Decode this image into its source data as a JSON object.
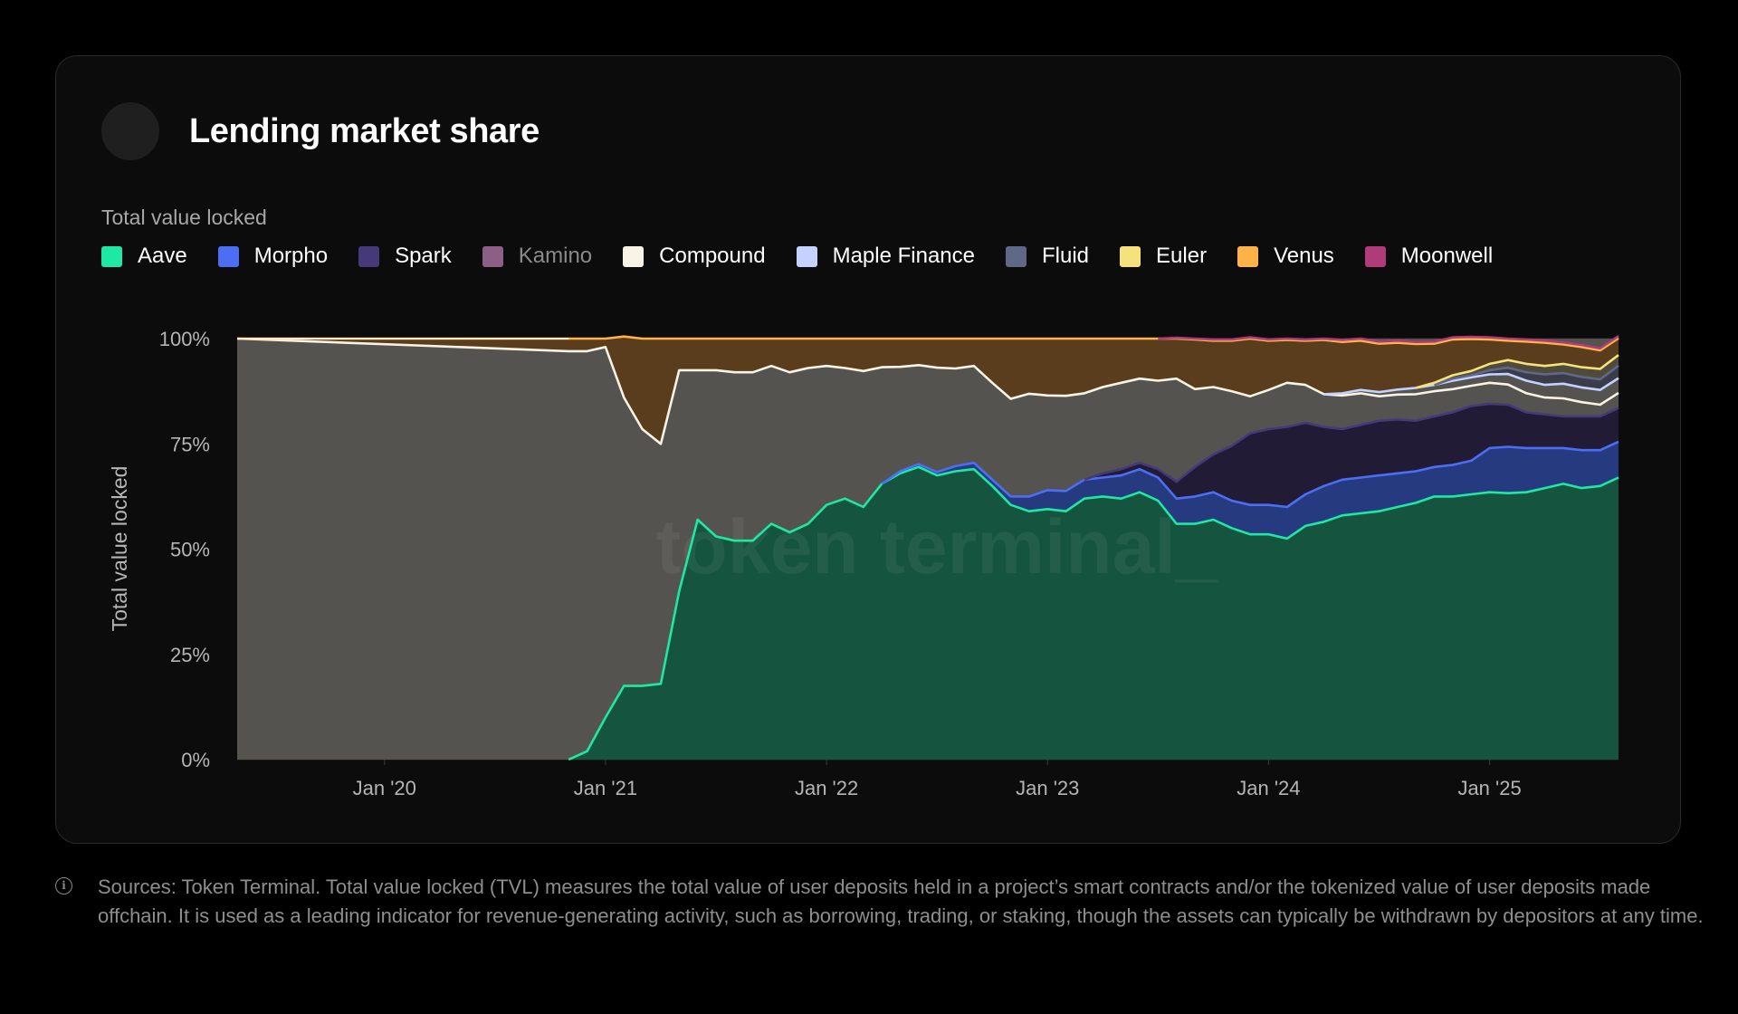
{
  "card": {
    "title": "Lending market share",
    "subtitle": "Total value locked"
  },
  "legend": [
    {
      "label": "Aave",
      "color": "#1de9a4",
      "dim": false
    },
    {
      "label": "Morpho",
      "color": "#4c6ef5",
      "dim": false
    },
    {
      "label": "Spark",
      "color": "#46397a",
      "dim": false
    },
    {
      "label": "Kamino",
      "color": "#8d5e86",
      "dim": true
    },
    {
      "label": "Compound",
      "color": "#f8f3e4",
      "dim": false
    },
    {
      "label": "Maple Finance",
      "color": "#c5d1ff",
      "dim": false
    },
    {
      "label": "Fluid",
      "color": "#5f6886",
      "dim": false
    },
    {
      "label": "Euler",
      "color": "#f5e27a",
      "dim": false
    },
    {
      "label": "Venus",
      "color": "#ffb347",
      "dim": false
    },
    {
      "label": "Moonwell",
      "color": "#b03a7a",
      "dim": false
    }
  ],
  "watermark": "token terminal_",
  "footnote": "Sources: Token Terminal. Total value locked (TVL) measures the total value of user deposits held in a project’s smart contracts and/or the tokenized value of user deposits made offchain. It is used as a leading indicator for revenue-generating activity, such as borrowing, trading, or staking, though the assets can typically be withdrawn by depositors at any time.",
  "chart_data": {
    "type": "area",
    "stacked": true,
    "normalized": true,
    "title": "Lending market share",
    "subtitle": "Total value locked",
    "ylabel": "Total value locked",
    "ylim": [
      0,
      100
    ],
    "y_ticks": [
      "0%",
      "25%",
      "50%",
      "75%",
      "100%"
    ],
    "x_ticks": [
      "Jan '20",
      "Jan '21",
      "Jan '22",
      "Jan '23",
      "Jan '24",
      "Jan '25"
    ],
    "x_start": "2019-05",
    "x_end": "2025-08",
    "grid": true,
    "legend_position": "top-left",
    "other_color": "#555350",
    "venus_fill": "#5a3d1c",
    "x": [
      "2019-05",
      "2020-11",
      "2020-12",
      "2021-01",
      "2021-02",
      "2021-03",
      "2021-04",
      "2021-05",
      "2021-06",
      "2021-07",
      "2021-08",
      "2021-09",
      "2021-10",
      "2021-11",
      "2021-12",
      "2022-01",
      "2022-02",
      "2022-03",
      "2022-04",
      "2022-05",
      "2022-06",
      "2022-07",
      "2022-08",
      "2022-09",
      "2022-10",
      "2022-11",
      "2022-12",
      "2023-01",
      "2023-02",
      "2023-03",
      "2023-04",
      "2023-05",
      "2023-06",
      "2023-07",
      "2023-08",
      "2023-09",
      "2023-10",
      "2023-11",
      "2023-12",
      "2024-01",
      "2024-02",
      "2024-03",
      "2024-04",
      "2024-05",
      "2024-06",
      "2024-07",
      "2024-08",
      "2024-09",
      "2024-10",
      "2024-11",
      "2024-12",
      "2025-01",
      "2025-02",
      "2025-03",
      "2025-04",
      "2025-05",
      "2025-06",
      "2025-07",
      "2025-08"
    ],
    "series": [
      {
        "name": "Aave",
        "values": [
          0,
          0,
          2,
          10,
          17.5,
          17.5,
          18,
          40,
          57,
          53,
          52,
          52,
          56,
          54,
          56,
          60.5,
          62,
          60,
          65.5,
          68,
          69.5,
          67.5,
          68.5,
          69,
          65,
          60.5,
          59,
          59.5,
          59,
          62,
          62.5,
          62,
          63.5,
          61.5,
          56,
          56,
          57,
          55,
          53.5,
          53.5,
          52.5,
          55.5,
          56.5,
          58,
          58.5,
          59,
          60,
          61,
          62.5,
          62.5,
          63,
          63.5,
          63.3,
          63.5,
          64.5,
          65.5,
          64.5,
          65,
          67
        ]
      },
      {
        "name": "Morpho",
        "values": [
          0,
          0,
          0,
          0,
          0,
          0,
          0,
          0,
          0,
          0,
          0,
          0,
          0,
          0,
          0,
          0,
          0,
          0,
          0,
          0.5,
          0.7,
          0.8,
          1.2,
          1.5,
          1.5,
          2,
          3.5,
          4.5,
          4.8,
          4.5,
          4.5,
          5.5,
          5.5,
          5.5,
          6,
          6.5,
          6.5,
          6.5,
          7,
          7,
          7.5,
          7.5,
          8.5,
          8.5,
          8.5,
          8.5,
          8,
          7.5,
          7,
          7.5,
          8,
          10.5,
          11,
          10.5,
          9.5,
          8.5,
          9,
          8.5,
          8.5
        ]
      },
      {
        "name": "Spark",
        "values": [
          0,
          0,
          0,
          0,
          0,
          0,
          0,
          0,
          0,
          0,
          0,
          0,
          0,
          0,
          0,
          0,
          0,
          0,
          0,
          0,
          0,
          0,
          0,
          0,
          0,
          0,
          0,
          0,
          0,
          0,
          1,
          1.5,
          1.5,
          2,
          4,
          7,
          9,
          13,
          17,
          18,
          19,
          17,
          14,
          12,
          12.5,
          13,
          12.8,
          12,
          12,
          12.5,
          13,
          10.5,
          10,
          8.5,
          8,
          7.5,
          8,
          8,
          8
        ]
      },
      {
        "name": "Kamino",
        "values": [
          0,
          0,
          0,
          0,
          0,
          0,
          0,
          0,
          0,
          0,
          0,
          0,
          0,
          0,
          0,
          0,
          0,
          0,
          0,
          0,
          0,
          0,
          0,
          0,
          0,
          0,
          0,
          0,
          0,
          0,
          0,
          0,
          0,
          0,
          0,
          0,
          0,
          0,
          0,
          0,
          0,
          0,
          0,
          0,
          0,
          0,
          0,
          0,
          0,
          0,
          0,
          0,
          0,
          0,
          0,
          0,
          0,
          0,
          0
        ]
      },
      {
        "name": "Compound",
        "values": [
          100,
          97,
          95,
          88,
          68.5,
          61,
          57,
          52.5,
          35.5,
          39.5,
          40,
          40,
          37.5,
          38,
          37,
          33,
          31,
          32.3,
          27.7,
          24.8,
          23.5,
          24.8,
          23.2,
          23,
          23,
          23.2,
          24.4,
          22.5,
          22.6,
          20.5,
          20.5,
          20.5,
          20,
          21,
          24.5,
          18.5,
          16,
          13,
          8.8,
          9.3,
          10.5,
          9,
          7.8,
          8,
          7.5,
          5.8,
          5.9,
          6.3,
          6,
          5.5,
          4.8,
          5,
          4.8,
          4.5,
          4,
          4.3,
          3.4,
          2.8,
          3.6
        ]
      },
      {
        "name": "Maple Finance",
        "values": [
          0,
          0,
          0,
          0,
          0,
          0,
          0,
          0,
          0,
          0,
          0,
          0,
          0,
          0,
          0,
          0,
          0,
          0,
          0,
          0,
          0,
          0,
          0,
          0,
          0,
          0,
          0,
          0,
          0,
          0,
          0,
          0,
          0,
          0,
          0,
          0,
          0,
          0,
          0,
          0,
          0,
          0,
          0,
          0.5,
          0.8,
          1,
          1.2,
          1.5,
          1.5,
          2,
          2,
          2,
          2.5,
          3,
          3,
          3.5,
          3.5,
          3.5,
          3.5
        ]
      },
      {
        "name": "Fluid",
        "values": [
          0,
          0,
          0,
          0,
          0,
          0,
          0,
          0,
          0,
          0,
          0,
          0,
          0,
          0,
          0,
          0,
          0,
          0,
          0,
          0,
          0,
          0,
          0,
          0,
          0,
          0,
          0,
          0,
          0,
          0,
          0,
          0,
          0,
          0,
          0,
          0,
          0,
          0,
          0,
          0,
          0,
          0,
          0,
          0,
          0,
          0,
          0,
          0,
          0,
          0.5,
          0.5,
          1,
          1.5,
          2,
          2.5,
          2.5,
          2.5,
          2.5,
          3
        ]
      },
      {
        "name": "Euler",
        "values": [
          0,
          0,
          0,
          0,
          0,
          0,
          0,
          0,
          0,
          0,
          0,
          0,
          0,
          0,
          0,
          0,
          0,
          0,
          0,
          0,
          0,
          0,
          0,
          0,
          0,
          0,
          0,
          0,
          0,
          0,
          0,
          0,
          0,
          0,
          0,
          0,
          0,
          0,
          0,
          0,
          0,
          0,
          0,
          0,
          0,
          0,
          0,
          0,
          0.5,
          0.8,
          1,
          1.5,
          1.8,
          2,
          2,
          2.2,
          2.3,
          2.5,
          2.5
        ]
      },
      {
        "name": "Venus",
        "values": [
          0,
          3,
          3,
          2,
          14.5,
          21.5,
          25,
          7.5,
          7.5,
          7.5,
          8,
          8,
          6.5,
          8,
          7,
          6.5,
          7,
          7.7,
          6.8,
          6.7,
          6.3,
          6.9,
          7.1,
          6.5,
          10.5,
          14.3,
          13.1,
          13.5,
          13.6,
          13,
          11.5,
          10.5,
          9.5,
          10,
          9.5,
          11.8,
          11,
          12,
          13.7,
          11.7,
          10.2,
          10.5,
          12.9,
          12.2,
          11.7,
          11.5,
          11.1,
          10.4,
          9.3,
          8.5,
          7.6,
          5.8,
          4.6,
          5.3,
          5.5,
          4.6,
          4.8,
          4.4,
          4
        ]
      },
      {
        "name": "Moonwell",
        "values": [
          0,
          0,
          0,
          0,
          0,
          0,
          0,
          0,
          0,
          0,
          0,
          0,
          0,
          0,
          0,
          0,
          0,
          0,
          0,
          0,
          0,
          0,
          0,
          0,
          0,
          0,
          0,
          0,
          0,
          0,
          0,
          0,
          0,
          0,
          0.2,
          0.2,
          0.3,
          0.3,
          0.3,
          0.3,
          0.3,
          0.3,
          0.3,
          0.5,
          0.5,
          0.5,
          0.5,
          0.5,
          0.5,
          0.5,
          0.5,
          0.5,
          0.5,
          0.5,
          0.5,
          0.5,
          0.5,
          0.5,
          0.5
        ]
      }
    ]
  }
}
